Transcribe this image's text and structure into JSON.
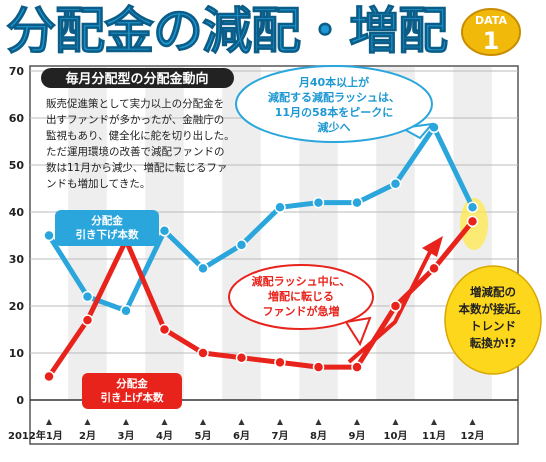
{
  "title": "分配金の減配・増配",
  "badge": {
    "label": "DATA",
    "number": "1"
  },
  "colors": {
    "cut": "#2aa6dc",
    "raise": "#e8231c",
    "accent": "#f1b90a"
  },
  "chart_data": {
    "type": "line",
    "categories": [
      "2012年1月",
      "2月",
      "3月",
      "4月",
      "5月",
      "6月",
      "7月",
      "8月",
      "9月",
      "10月",
      "11月",
      "12月"
    ],
    "series": [
      {
        "name": "分配金\n引き下げ本数",
        "values": [
          35,
          22,
          19,
          36,
          28,
          33,
          41,
          42,
          42,
          46,
          58,
          41
        ]
      },
      {
        "name": "分配金\n引き上げ本数",
        "values": [
          5,
          17,
          34,
          15,
          10,
          9,
          8,
          7,
          7,
          20,
          28,
          38
        ]
      }
    ],
    "yticks": [
      0,
      10,
      20,
      30,
      40,
      50,
      60,
      70
    ],
    "ylim": [
      0,
      70
    ],
    "grid": true,
    "intro": {
      "heading": "毎月分配型の分配金動向",
      "lines": [
        "販売促進策として実力以上の分配金を",
        "出すファンドが多かったが、金融庁の",
        "監視もあり、健全化に舵を切り出した。",
        "ただ運用環境の改善で減配ファンドの",
        "数は11月から減少、増配に転じるファ",
        "ンドも増加してきた。"
      ]
    },
    "callouts": {
      "cut_peak": [
        "月40本以上が",
        "減配する減配ラッシュは、",
        "11月の58本をピークに",
        "減少へ"
      ],
      "raise_surge": [
        "減配ラッシュ中に、",
        "増配に転じる",
        "ファンドが急増"
      ],
      "converge": [
        "増減配の",
        "本数が接近。",
        "トレンド",
        "転換か!?"
      ]
    }
  }
}
